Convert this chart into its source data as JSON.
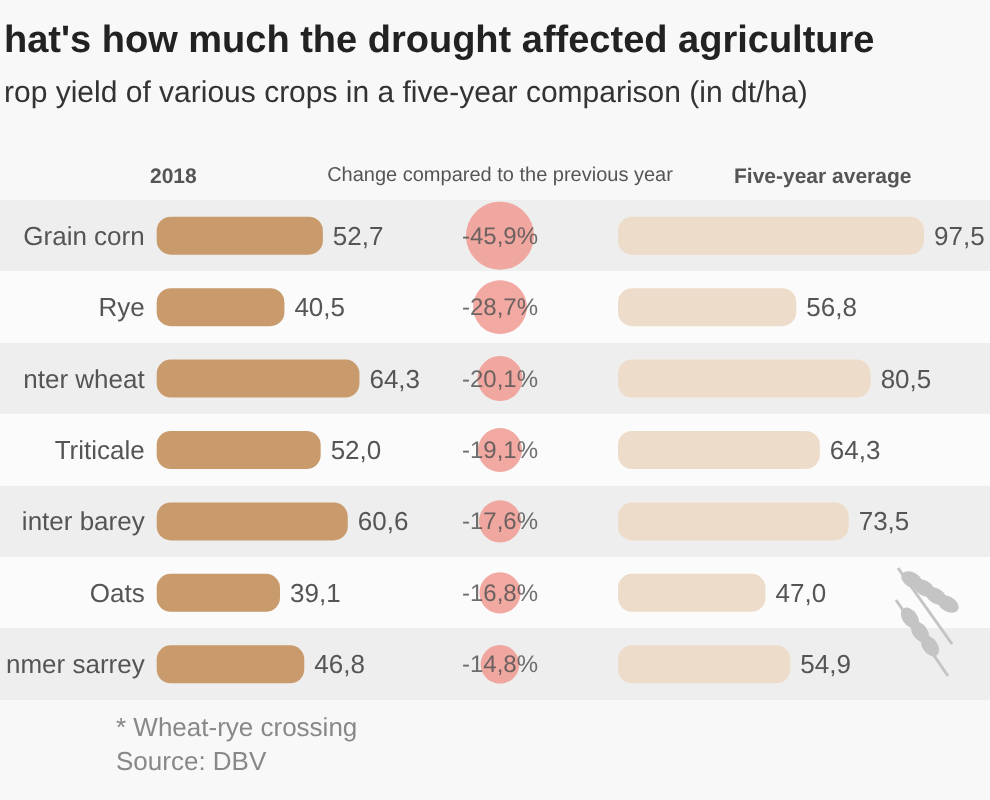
{
  "chart_data": [
    {
      "type": "other",
      "title": "hat's how much the drought affected agriculture",
      "subtitle": "rop yield of various crops in a five-year comparison (in dt/ha)",
      "annotations": [
        "* Wheat-rye crossing",
        "Source: DBV"
      ]
    },
    {
      "type": "bar",
      "orientation": "horizontal",
      "title": "2018",
      "categories": [
        "Grain corn",
        "Rye",
        "nter wheat",
        "Triticale",
        "inter barey",
        "Oats",
        "nmer sarrey"
      ],
      "values": [
        52.7,
        40.5,
        64.3,
        52.0,
        60.6,
        39.1,
        46.8
      ],
      "value_labels": [
        "52,7",
        "40,5",
        "64,3",
        "52,0",
        "60,6",
        "39,1",
        "46,8"
      ],
      "color": "#c99b6c"
    },
    {
      "type": "other",
      "title": "Change compared to the previous year",
      "categories": [
        null,
        null,
        null,
        null,
        null,
        null,
        null
      ],
      "values": [
        -45.9,
        -28.7,
        -20.1,
        -19.1,
        -17.6,
        -16.8,
        -14.8
      ],
      "value_labels": [
        "-45,9%",
        "-28,7%",
        "-20,1%",
        "-19,1%",
        "-17,6%",
        "-16,8%",
        "-14,8%"
      ],
      "color": "#ee9a90"
    },
    {
      "type": "bar",
      "orientation": "horizontal",
      "title": "Five-year average",
      "categories": [
        null,
        null,
        null,
        null,
        null,
        null,
        null
      ],
      "values": [
        97.5,
        56.8,
        80.5,
        64.3,
        73.5,
        47.0,
        54.9
      ],
      "value_labels": [
        "97,5",
        "56,8",
        "80,5",
        "64,3",
        "73,5",
        "47,0",
        "54,9"
      ],
      "color": "#eddcc9"
    }
  ]
}
